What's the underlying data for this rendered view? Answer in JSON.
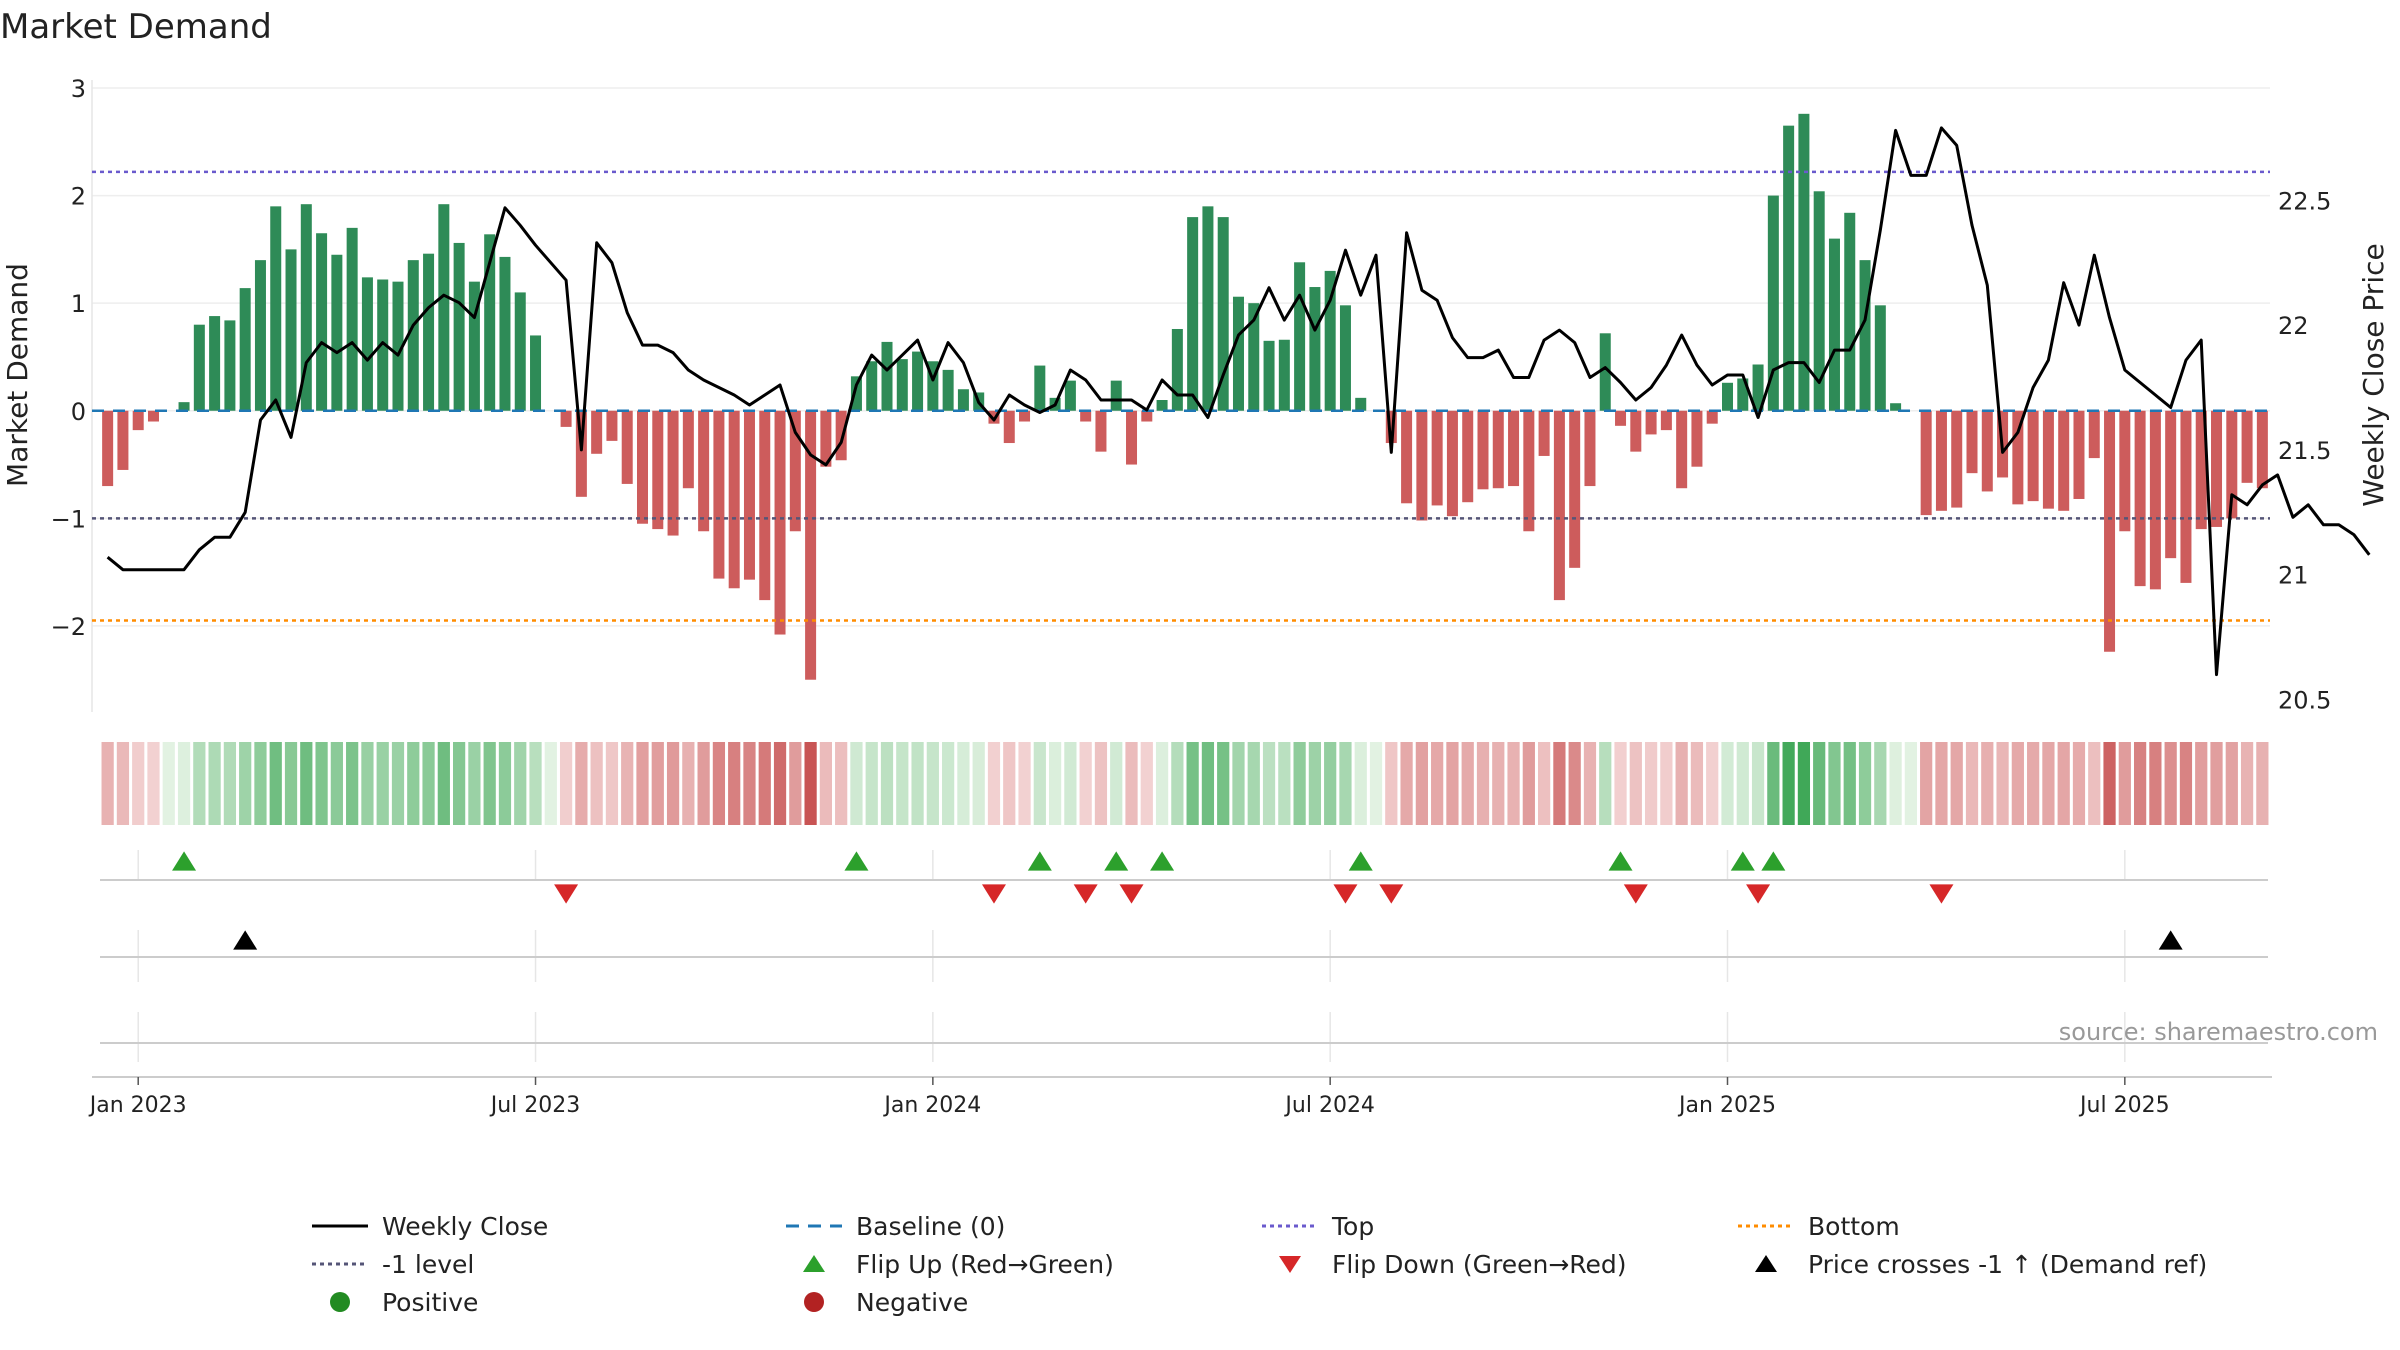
{
  "chart_data": {
    "type": "bar",
    "title": "Market Demand",
    "ylabel_left": "Market Demand",
    "ylabel_right": "Weekly Close Price",
    "ylim_left": [
      -2.8,
      3.0
    ],
    "ylim_right": [
      20.45,
      22.95
    ],
    "yticks_left": [
      {
        "value": 3,
        "label": "3"
      },
      {
        "value": 2,
        "label": "2"
      },
      {
        "value": 1,
        "label": "1"
      },
      {
        "value": 0,
        "label": "0"
      },
      {
        "value": -1,
        "label": "−1"
      },
      {
        "value": -2,
        "label": "−2"
      }
    ],
    "yticks_right": [
      {
        "value": 22.5,
        "label": "22.5"
      },
      {
        "value": 22,
        "label": "22"
      },
      {
        "value": 21.5,
        "label": "21.5"
      },
      {
        "value": 21,
        "label": "21"
      },
      {
        "value": 20.5,
        "label": "20.5"
      }
    ],
    "xticks": [
      {
        "index": 2,
        "label": "Jan 2023"
      },
      {
        "index": 28,
        "label": "Jul 2023"
      },
      {
        "index": 54,
        "label": "Jan 2024"
      },
      {
        "index": 80,
        "label": "Jul 2024"
      },
      {
        "index": 106,
        "label": "Jan 2025"
      },
      {
        "index": 132,
        "label": "Jul 2025"
      }
    ],
    "levels": {
      "top": 2.22,
      "bottom": -1.95,
      "minus_one": -1.0,
      "baseline": 0
    },
    "demand": [
      -0.7,
      -0.55,
      -0.18,
      -0.1,
      0,
      0.08,
      0.8,
      0.88,
      0.84,
      1.14,
      1.4,
      1.9,
      1.5,
      1.92,
      1.65,
      1.45,
      1.7,
      1.24,
      1.22,
      1.2,
      1.4,
      1.46,
      1.92,
      1.56,
      1.2,
      1.64,
      1.43,
      1.1,
      0.7,
      0,
      -0.15,
      -0.8,
      -0.4,
      -0.28,
      -0.68,
      -1.05,
      -1.1,
      -1.16,
      -0.72,
      -1.12,
      -1.56,
      -1.65,
      -1.57,
      -1.76,
      -2.08,
      -1.12,
      -2.5,
      -0.52,
      -0.46,
      0.32,
      0.46,
      0.64,
      0.48,
      0.55,
      0.46,
      0.38,
      0.2,
      0.17,
      -0.12,
      -0.3,
      -0.1,
      0.42,
      0.12,
      0.28,
      -0.1,
      -0.38,
      0.28,
      -0.5,
      -0.1,
      0.1,
      0.76,
      1.8,
      1.9,
      1.8,
      1.06,
      1.0,
      0.65,
      0.66,
      1.38,
      1.15,
      1.3,
      0.98,
      0.12,
      0,
      -0.3,
      -0.86,
      -1.02,
      -0.88,
      -0.98,
      -0.85,
      -0.73,
      -0.72,
      -0.7,
      -1.12,
      -0.42,
      -1.76,
      -1.46,
      -0.7,
      0.72,
      -0.14,
      -0.38,
      -0.22,
      -0.18,
      -0.72,
      -0.52,
      -0.12,
      0.26,
      0.3,
      0.43,
      2.0,
      2.65,
      2.76,
      2.04,
      1.6,
      1.84,
      1.4,
      0.98,
      0.07,
      0,
      -0.97,
      -0.93,
      -0.9,
      -0.58,
      -0.75,
      -0.62,
      -0.87,
      -0.84,
      -0.91,
      -0.93,
      -0.82,
      -0.44,
      -2.24,
      -1.12,
      -1.63,
      -1.66,
      -1.37,
      -1.6,
      -1.1,
      -1.08,
      -1.0,
      -0.67,
      -0.72
    ],
    "price": [
      21.07,
      21.02,
      21.02,
      21.02,
      21.02,
      21.02,
      21.1,
      21.15,
      21.15,
      21.25,
      21.62,
      21.7,
      21.55,
      21.85,
      21.93,
      21.89,
      21.93,
      21.86,
      21.93,
      21.88,
      22.0,
      22.07,
      22.12,
      22.09,
      22.03,
      22.25,
      22.47,
      22.4,
      22.32,
      22.25,
      22.18,
      21.5,
      22.33,
      22.25,
      22.05,
      21.92,
      21.92,
      21.89,
      21.82,
      21.78,
      21.75,
      21.72,
      21.68,
      21.72,
      21.76,
      21.57,
      21.48,
      21.44,
      21.53,
      21.76,
      21.88,
      21.82,
      21.88,
      21.94,
      21.78,
      21.93,
      21.85,
      21.69,
      21.62,
      21.72,
      21.68,
      21.65,
      21.68,
      21.82,
      21.78,
      21.7,
      21.7,
      21.7,
      21.66,
      21.78,
      21.72,
      21.72,
      21.63,
      21.8,
      21.96,
      22.02,
      22.15,
      22.02,
      22.12,
      21.98,
      22.1,
      22.3,
      22.12,
      22.28,
      21.49,
      22.37,
      22.14,
      22.1,
      21.95,
      21.87,
      21.87,
      21.9,
      21.79,
      21.79,
      21.94,
      21.98,
      21.93,
      21.79,
      21.83,
      21.77,
      21.7,
      21.75,
      21.84,
      21.96,
      21.84,
      21.76,
      21.8,
      21.8,
      21.63,
      21.82,
      21.85,
      21.85,
      21.77,
      21.9,
      21.9,
      22.02,
      22.38,
      22.78,
      22.6,
      22.6,
      22.79,
      22.72,
      22.4,
      22.16,
      21.49,
      21.57,
      21.75,
      21.86,
      22.17,
      22.0,
      22.28,
      22.03,
      21.82,
      21.77,
      21.72,
      21.67,
      21.86,
      21.94,
      20.6,
      21.32,
      21.28,
      21.36,
      21.4,
      21.23,
      21.28,
      21.2,
      21.2,
      21.16,
      21.08
    ],
    "flip_up": [
      5,
      49,
      61,
      66,
      69,
      82,
      99,
      107,
      109
    ],
    "flip_down": [
      30,
      58,
      64,
      67,
      81,
      84,
      100,
      108,
      120
    ],
    "price_cross": [
      9,
      135
    ],
    "legend": [
      {
        "label": "Weekly Close",
        "marker": "line-solid",
        "color": "#000000"
      },
      {
        "label": "Baseline (0)",
        "marker": "line-dashed",
        "color": "#1f77b4"
      },
      {
        "label": "Top",
        "marker": "line-dotted",
        "color": "#6a5acd"
      },
      {
        "label": "Bottom",
        "marker": "line-dotted",
        "color": "#ff8c00"
      },
      {
        "label": "-1 level",
        "marker": "line-dotted",
        "color": "#555577"
      },
      {
        "label": "Flip Up (Red→Green)",
        "marker": "triangle-up",
        "color": "#2ca02c"
      },
      {
        "label": "Flip Down (Green→Red)",
        "marker": "triangle-down",
        "color": "#d62728"
      },
      {
        "label": "Price crosses -1 ↑ (Demand ref)",
        "marker": "triangle-up",
        "color": "#000000"
      },
      {
        "label": "Positive",
        "marker": "circle",
        "color": "#228b22"
      },
      {
        "label": "Negative",
        "marker": "circle",
        "color": "#b22222"
      }
    ],
    "colors": {
      "positive": "#2e8b57",
      "negative": "#cd5c5c",
      "price_line": "#000000",
      "top": "#6a5acd",
      "bottom": "#ff8c00",
      "minus_one": "#555577",
      "baseline": "#1f77b4",
      "flip_up": "#2ca02c",
      "flip_down": "#d62728",
      "cross": "#000000"
    }
  },
  "source_text": "source: sharemaestro.com"
}
